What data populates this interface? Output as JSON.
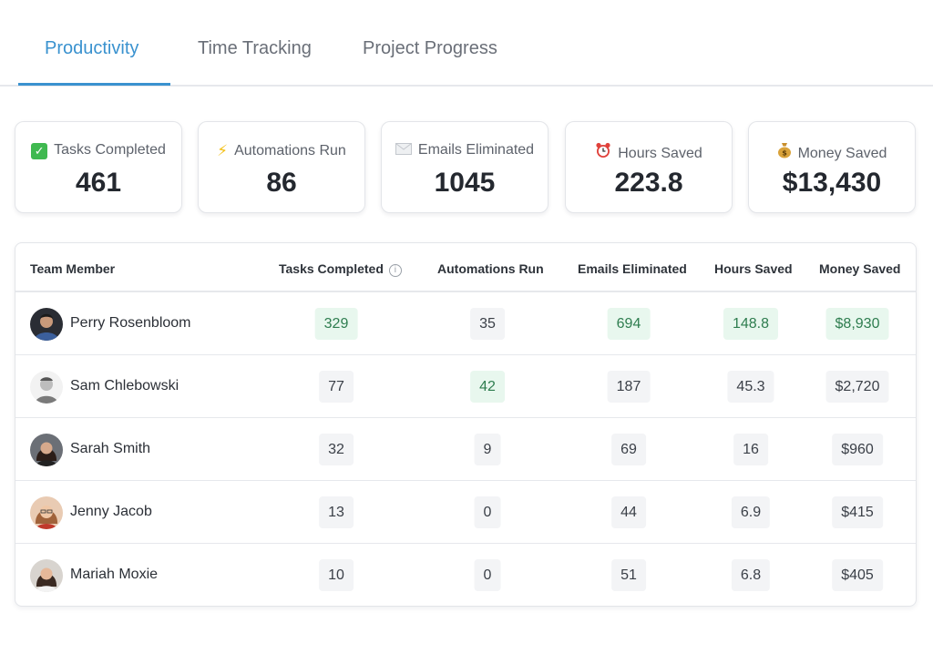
{
  "tabs": [
    {
      "label": "Productivity",
      "active": true
    },
    {
      "label": "Time Tracking",
      "active": false
    },
    {
      "label": "Project Progress",
      "active": false
    }
  ],
  "summary": [
    {
      "label": "Tasks Completed",
      "value": "461",
      "icon": "check-icon"
    },
    {
      "label": "Automations Run",
      "value": "86",
      "icon": "lightning-icon"
    },
    {
      "label": "Emails Eliminated",
      "value": "1045",
      "icon": "envelope-icon"
    },
    {
      "label": "Hours Saved",
      "value": "223.8",
      "icon": "alarm-clock-icon"
    },
    {
      "label": "Money Saved",
      "value": "$13,430",
      "icon": "money-bag-icon"
    }
  ],
  "table": {
    "headers": [
      "Team Member",
      "Tasks Completed",
      "Automations Run",
      "Emails Eliminated",
      "Hours Saved",
      "Money Saved"
    ],
    "rows": [
      {
        "name": "Perry Rosenbloom",
        "values": [
          "329",
          "35",
          "694",
          "148.8",
          "$8,930"
        ],
        "highlight": [
          true,
          false,
          true,
          true,
          true
        ]
      },
      {
        "name": "Sam Chlebowski",
        "values": [
          "77",
          "42",
          "187",
          "45.3",
          "$2,720"
        ],
        "highlight": [
          false,
          true,
          false,
          false,
          false
        ]
      },
      {
        "name": "Sarah Smith",
        "values": [
          "32",
          "9",
          "69",
          "16",
          "$960"
        ],
        "highlight": [
          false,
          false,
          false,
          false,
          false
        ]
      },
      {
        "name": "Jenny Jacob",
        "values": [
          "13",
          "0",
          "44",
          "6.9",
          "$415"
        ],
        "highlight": [
          false,
          false,
          false,
          false,
          false
        ]
      },
      {
        "name": "Mariah Moxie",
        "values": [
          "10",
          "0",
          "51",
          "6.8",
          "$405"
        ],
        "highlight": [
          false,
          false,
          false,
          false,
          false
        ]
      }
    ]
  },
  "colors": {
    "accent": "#3a92cf",
    "highlight_bg": "#e8f7ee",
    "highlight_text": "#2e7d4f",
    "cell_bg": "#f3f4f6"
  }
}
